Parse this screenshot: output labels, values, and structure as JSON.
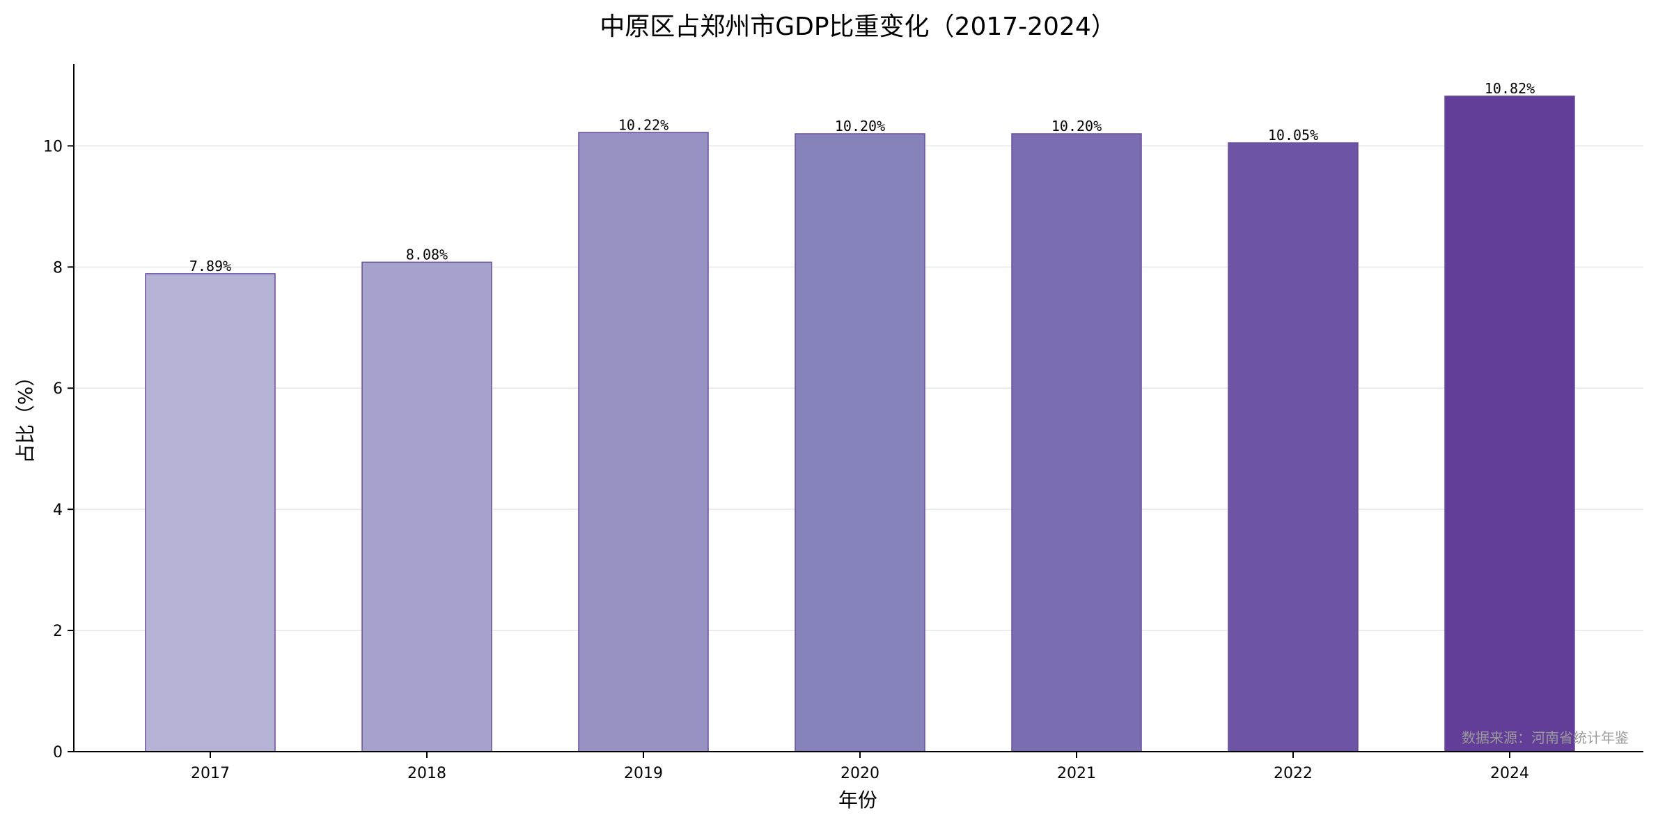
{
  "chart_data": {
    "type": "bar",
    "title": "中原区占郑州市GDP比重变化（2017-2024）",
    "xlabel": "年份",
    "ylabel": "占比（%）",
    "categories": [
      "2017",
      "2018",
      "2019",
      "2020",
      "2021",
      "2022",
      "2024"
    ],
    "values": [
      7.89,
      8.08,
      10.22,
      10.2,
      10.2,
      10.05,
      10.82
    ],
    "data_labels": [
      "7.89%",
      "8.08%",
      "10.22%",
      "10.20%",
      "10.20%",
      "10.05%",
      "10.82%"
    ],
    "ylim": [
      0,
      11.35
    ],
    "yticks": [
      0,
      2,
      4,
      6,
      8,
      10
    ],
    "grid": "horizontal",
    "bar_colors": [
      "#b5b4d7",
      "#a5a3cb",
      "#9891c3",
      "#8682ba",
      "#7a6db0",
      "#6d54a4",
      "#623e99"
    ],
    "bar_edge_color": "#6a4c9c",
    "gridline_color": "#e6e6e6",
    "annotation": "数据来源：河南省统计年鉴"
  }
}
